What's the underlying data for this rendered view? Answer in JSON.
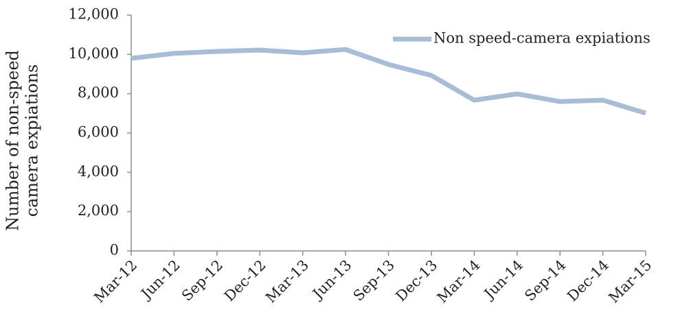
{
  "chart_data": {
    "type": "line",
    "y_label": [
      "Number of non-speed",
      "camera expiations"
    ],
    "categories": [
      "Mar-12",
      "Jun-12",
      "Sep-12",
      "Dec-12",
      "Mar-13",
      "Jun-13",
      "Sep-13",
      "Dec-13",
      "Mar-14",
      "Jun-14",
      "Sep-14",
      "Dec-14",
      "Mar-15"
    ],
    "series": [
      {
        "name": "Non speed-camera expiations",
        "color": "#a9bcd6",
        "values": [
          9800,
          10050,
          10150,
          10220,
          10080,
          10250,
          9490,
          8930,
          7670,
          7990,
          7600,
          7670,
          7010
        ]
      }
    ],
    "ylim": [
      0,
      12000
    ],
    "yticks": [
      0,
      {
        "value": 2000,
        "label": "2,000"
      },
      {
        "value": 4000,
        "label": "4,000"
      },
      {
        "value": 6000,
        "label": "6,000"
      },
      {
        "value": 8000,
        "label": "8,000"
      },
      {
        "value": 10000,
        "label": "10,000"
      },
      {
        "value": 12000,
        "label": "12,000"
      }
    ],
    "grid": false,
    "legend": "top-right"
  }
}
